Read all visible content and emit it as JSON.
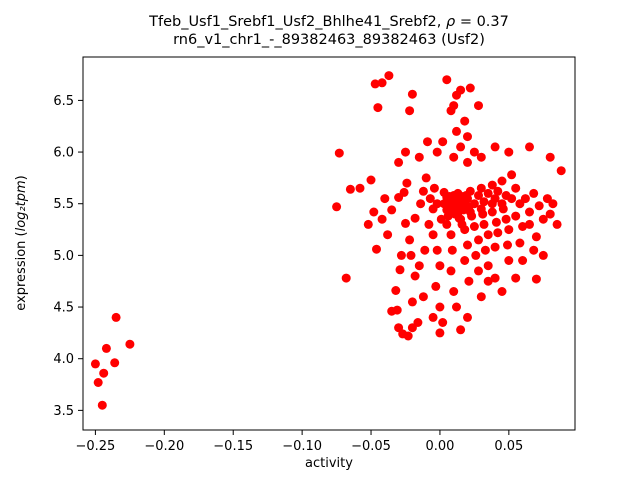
{
  "chart_data": {
    "type": "scatter",
    "title": "Tfeb_Usf1_Srebf1_Usf2_Bhlhe41_Srebf2, ρ = 0.37",
    "title_text": "Tfeb_Usf1_Srebf1_Usf2_Bhlhe41_Srebf2, ",
    "title_rho": "ρ",
    "title_value": " = 0.37",
    "subtitle": "rn6_v1_chr1_-_89382463_89382463 (Usf2)",
    "xlabel": "activity",
    "ylabel": "expression (log₂tpm)",
    "ylabel_prefix": "expression (",
    "ylabel_math": "log₂tpm",
    "ylabel_suffix": ")",
    "marker_color": "#ff0000",
    "marker_radius": 4.5,
    "grid": false,
    "legend": "none",
    "xlim": [
      -0.259,
      0.098
    ],
    "ylim": [
      3.31,
      6.92
    ],
    "xticks": [
      -0.25,
      -0.2,
      -0.15,
      -0.1,
      -0.05,
      0.0,
      0.05
    ],
    "xtick_labels": [
      "−0.25",
      "−0.20",
      "−0.15",
      "−0.10",
      "−0.05",
      "0.00",
      "0.05"
    ],
    "yticks": [
      3.5,
      4.0,
      4.5,
      5.0,
      5.5,
      6.0,
      6.5
    ],
    "ytick_labels": [
      "3.5",
      "4.0",
      "4.5",
      "5.0",
      "5.5",
      "6.0",
      "6.5"
    ],
    "points": [
      [
        -0.245,
        3.55
      ],
      [
        -0.248,
        3.77
      ],
      [
        -0.25,
        3.95
      ],
      [
        -0.236,
        3.96
      ],
      [
        -0.242,
        4.1
      ],
      [
        -0.225,
        4.14
      ],
      [
        -0.235,
        4.4
      ],
      [
        -0.244,
        3.86
      ],
      [
        -0.073,
        5.99
      ],
      [
        -0.065,
        5.64
      ],
      [
        -0.058,
        5.65
      ],
      [
        -0.068,
        4.78
      ],
      [
        -0.05,
        5.73
      ],
      [
        -0.048,
        5.42
      ],
      [
        -0.075,
        5.47
      ],
      [
        -0.047,
        6.66
      ],
      [
        -0.042,
        6.67
      ],
      [
        -0.037,
        6.74
      ],
      [
        -0.045,
        6.43
      ],
      [
        -0.052,
        5.3
      ],
      [
        -0.046,
        5.06
      ],
      [
        -0.04,
        5.55
      ],
      [
        -0.042,
        5.35
      ],
      [
        -0.038,
        5.2
      ],
      [
        -0.035,
        4.46
      ],
      [
        -0.031,
        4.47
      ],
      [
        -0.03,
        4.3
      ],
      [
        -0.027,
        4.24
      ],
      [
        -0.032,
        4.66
      ],
      [
        -0.029,
        4.86
      ],
      [
        -0.028,
        5.0
      ],
      [
        -0.035,
        5.44
      ],
      [
        -0.03,
        5.56
      ],
      [
        -0.026,
        5.61
      ],
      [
        -0.024,
        5.7
      ],
      [
        -0.03,
        5.9
      ],
      [
        -0.025,
        6.0
      ],
      [
        -0.022,
        6.4
      ],
      [
        -0.02,
        6.56
      ],
      [
        -0.025,
        5.31
      ],
      [
        -0.022,
        5.15
      ],
      [
        -0.021,
        5.0
      ],
      [
        -0.018,
        4.8
      ],
      [
        -0.02,
        4.55
      ],
      [
        -0.016,
        4.35
      ],
      [
        -0.012,
        4.6
      ],
      [
        -0.015,
        4.9
      ],
      [
        -0.011,
        5.05
      ],
      [
        -0.018,
        5.36
      ],
      [
        -0.014,
        5.5
      ],
      [
        -0.012,
        5.62
      ],
      [
        -0.01,
        5.75
      ],
      [
        -0.015,
        5.95
      ],
      [
        -0.009,
        6.1
      ],
      [
        -0.008,
        5.3
      ],
      [
        -0.005,
        5.45
      ],
      [
        -0.007,
        5.55
      ],
      [
        -0.004,
        5.65
      ],
      [
        -0.002,
        5.5
      ],
      [
        -0.005,
        5.2
      ],
      [
        -0.002,
        5.05
      ],
      [
        0.0,
        4.9
      ],
      [
        -0.003,
        4.7
      ],
      [
        0.0,
        4.5
      ],
      [
        0.002,
        4.35
      ],
      [
        0.001,
        5.35
      ],
      [
        0.003,
        5.5
      ],
      [
        0.005,
        5.56
      ],
      [
        0.003,
        5.61
      ],
      [
        0.005,
        5.44
      ],
      [
        0.008,
        5.5
      ],
      [
        0.005,
        5.3
      ],
      [
        0.008,
        5.2
      ],
      [
        0.009,
        5.05
      ],
      [
        0.008,
        4.85
      ],
      [
        0.01,
        4.65
      ],
      [
        0.006,
        5.38
      ],
      [
        0.009,
        5.44
      ],
      [
        0.007,
        5.57
      ],
      [
        0.01,
        5.58
      ],
      [
        0.012,
        4.5
      ],
      [
        0.011,
        5.4
      ],
      [
        0.012,
        5.52
      ],
      [
        0.015,
        5.55
      ],
      [
        0.013,
        5.6
      ],
      [
        0.015,
        5.48
      ],
      [
        0.018,
        5.5
      ],
      [
        0.015,
        5.35
      ],
      [
        0.018,
        5.25
      ],
      [
        0.02,
        5.1
      ],
      [
        0.018,
        4.95
      ],
      [
        0.021,
        4.75
      ],
      [
        0.022,
        5.42
      ],
      [
        0.02,
        5.55
      ],
      [
        0.022,
        5.62
      ],
      [
        0.025,
        5.5
      ],
      [
        0.023,
        5.38
      ],
      [
        0.025,
        5.28
      ],
      [
        0.028,
        5.15
      ],
      [
        0.026,
        5.0
      ],
      [
        0.028,
        4.85
      ],
      [
        0.03,
        5.45
      ],
      [
        0.028,
        5.58
      ],
      [
        0.03,
        5.65
      ],
      [
        0.013,
        5.41
      ],
      [
        0.016,
        5.57
      ],
      [
        0.011,
        5.47
      ],
      [
        0.014,
        5.36
      ],
      [
        0.017,
        5.44
      ],
      [
        0.019,
        5.58
      ],
      [
        0.021,
        5.47
      ],
      [
        0.016,
        5.3
      ],
      [
        0.032,
        5.52
      ],
      [
        0.031,
        5.4
      ],
      [
        0.032,
        5.3
      ],
      [
        0.035,
        5.2
      ],
      [
        0.033,
        5.05
      ],
      [
        0.035,
        4.9
      ],
      [
        0.038,
        5.5
      ],
      [
        0.035,
        5.6
      ],
      [
        0.038,
        5.68
      ],
      [
        0.04,
        5.55
      ],
      [
        0.038,
        5.42
      ],
      [
        0.041,
        5.32
      ],
      [
        0.042,
        5.22
      ],
      [
        0.04,
        5.08
      ],
      [
        0.045,
        5.5
      ],
      [
        0.042,
        5.62
      ],
      [
        0.045,
        5.72
      ],
      [
        0.048,
        5.58
      ],
      [
        0.046,
        5.45
      ],
      [
        0.048,
        5.35
      ],
      [
        0.05,
        5.25
      ],
      [
        0.049,
        5.1
      ],
      [
        0.05,
        4.95
      ],
      [
        0.052,
        5.55
      ],
      [
        0.055,
        5.65
      ],
      [
        0.052,
        5.78
      ],
      [
        0.058,
        5.5
      ],
      [
        0.055,
        5.38
      ],
      [
        0.06,
        5.28
      ],
      [
        0.058,
        5.12
      ],
      [
        0.065,
        5.42
      ],
      [
        0.062,
        5.55
      ],
      [
        0.068,
        5.6
      ],
      [
        0.065,
        5.3
      ],
      [
        0.07,
        5.18
      ],
      [
        0.068,
        5.05
      ],
      [
        0.075,
        5.35
      ],
      [
        0.072,
        5.48
      ],
      [
        0.078,
        5.55
      ],
      [
        0.08,
        5.4
      ],
      [
        0.085,
        5.3
      ],
      [
        0.082,
        5.5
      ],
      [
        0.06,
        4.95
      ],
      [
        0.075,
        5.0
      ],
      [
        0.088,
        5.82
      ],
      [
        0.005,
        6.7
      ],
      [
        0.01,
        6.45
      ],
      [
        0.012,
        6.55
      ],
      [
        0.015,
        6.6
      ],
      [
        0.008,
        6.4
      ],
      [
        0.018,
        6.3
      ],
      [
        0.012,
        6.2
      ],
      [
        0.02,
        6.15
      ],
      [
        0.015,
        6.05
      ],
      [
        0.01,
        5.95
      ],
      [
        0.02,
        5.9
      ],
      [
        0.025,
        6.0
      ],
      [
        0.03,
        5.95
      ],
      [
        0.04,
        6.05
      ],
      [
        0.05,
        6.0
      ],
      [
        0.065,
        6.05
      ],
      [
        0.08,
        5.95
      ],
      [
        -0.002,
        6.0
      ],
      [
        0.002,
        6.1
      ],
      [
        0.022,
        6.62
      ],
      [
        0.028,
        6.45
      ],
      [
        -0.02,
        4.3
      ],
      [
        -0.023,
        4.22
      ],
      [
        0.0,
        4.25
      ],
      [
        -0.005,
        4.4
      ],
      [
        0.03,
        4.6
      ],
      [
        0.035,
        4.75
      ],
      [
        0.04,
        4.78
      ],
      [
        0.055,
        4.78
      ],
      [
        0.07,
        4.77
      ],
      [
        0.045,
        4.65
      ],
      [
        0.02,
        4.4
      ],
      [
        0.015,
        4.28
      ]
    ]
  }
}
